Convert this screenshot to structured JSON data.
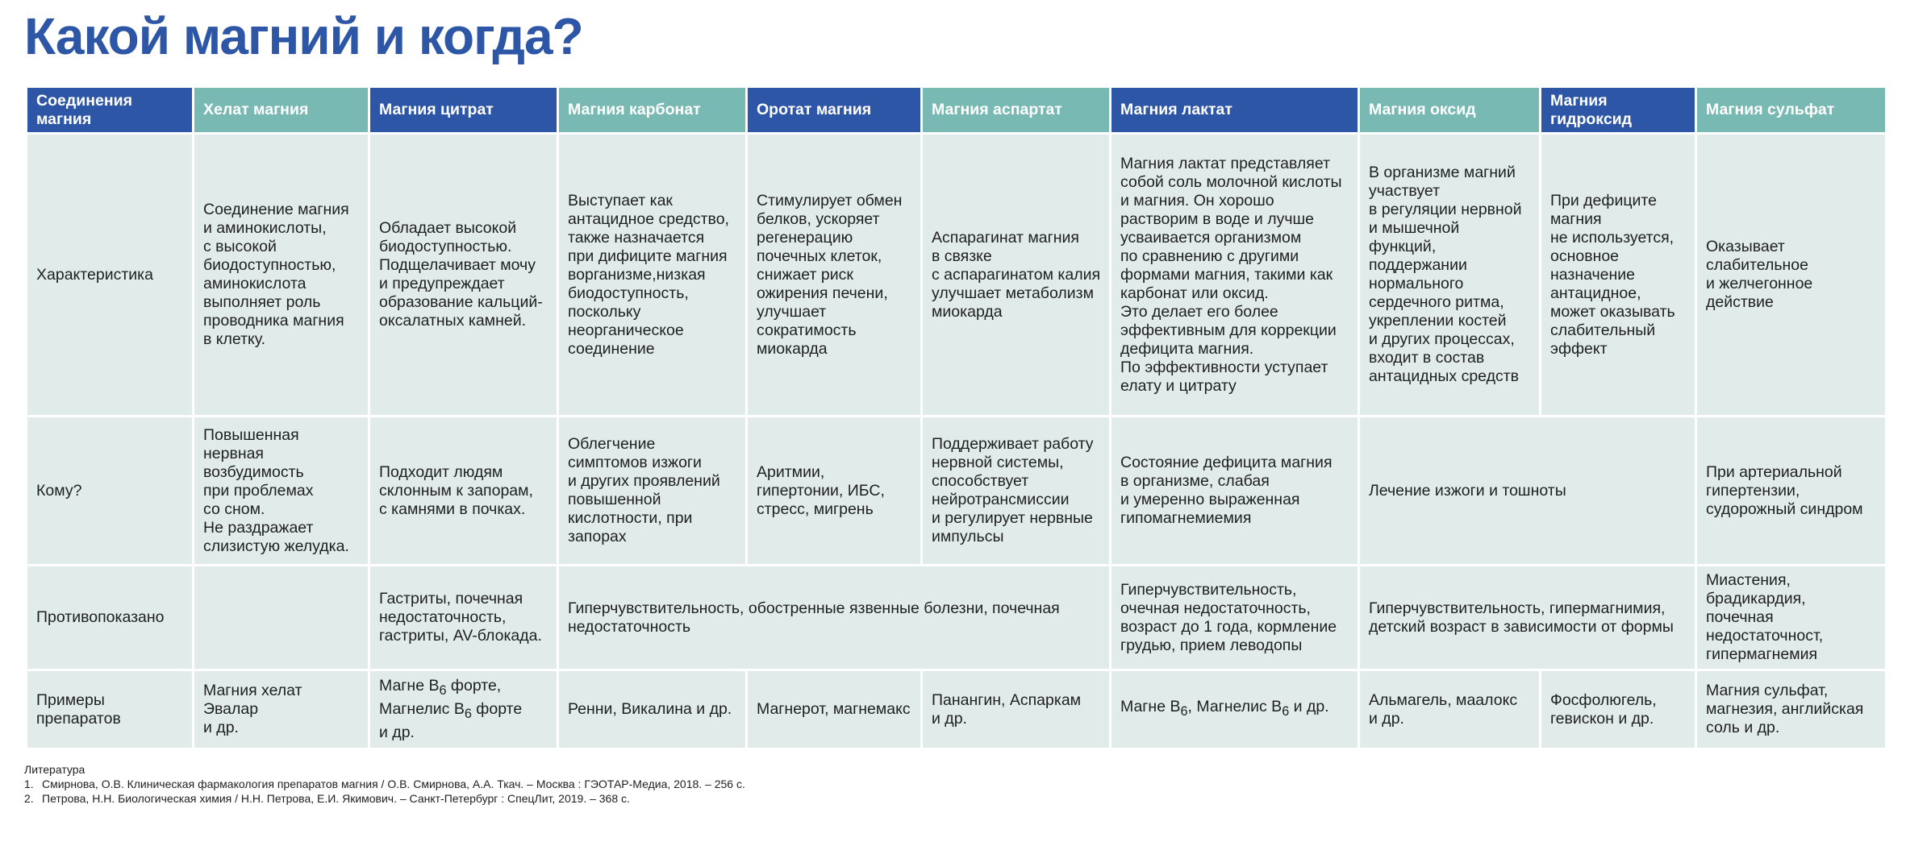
{
  "title": "Какой магний и когда?",
  "table": {
    "headers": [
      "Соединения магния",
      "Хелат магния",
      "Магния цитрат",
      "Магния карбонат",
      "Оротат магния",
      "Магния аспартат",
      "Магния лактат",
      "Магния оксид",
      "Магния гидроксид",
      "Магния сульфат"
    ],
    "rows": {
      "characteristic": {
        "label": "Характеристика",
        "chelate": "Соединение магния\nи аминокислоты,\nс высокой\nбиодоступностью,\nаминокислота\nвыполняет роль\nпроводника магния\nв клетку.",
        "citrate": "Обладает высокой\nбиодоступностью.\nПодщелачивает мочу\nи предупреждает\nобразование кальций-\nоксалатных камней.",
        "carbonate": "Выступает как\nантацидное средство,\n также назначается\n при дифиците магния\nворганизме,низкая\nбиодоступность,\nпоскольку\nнеорганическое\nсоединение",
        "orotate": "Стимулирует обмен\nбелков, ускоряет\nрегенерацию\nпочечных клеток,\nснижает риск\nожирения печени,\nулучшает\nсократимость\nмиокарда",
        "aspartate": "Аспарагинат магния\nв связке\nс аспарагинатом калия\nулучшает метаболизм\nмиокарда",
        "lactate": "Магния лактат представляет\nсобой соль молочной кислоты\nи магния. Он хорошо\nрастворим в воде и лучше\nусваивается организмом\nпо сравнению с другими\nформами магния, такими как\nкарбонат или оксид.\nЭто делает его более\nэффективным для коррекции\nдефицита магния.\nПо эффективности уступает\nелату и цитрату",
        "oxide": "В организме магний\nучаствует\nв регуляции нервной\nи мышечной\nфункций,\nподдержании\nнормального\nсердечного ритма,\nукреплении костей\nи других процессах,\nвходит в состав\nантацидных средств",
        "hydroxide": "При дефиците\nмагния\nне используется,\nосновное\nназначение\nантацидное,\nможет оказывать\nслабительный\nэффект",
        "sulfate": "Оказывает\nслабительное\nи желчегонное\nдействие"
      },
      "whom": {
        "label": "Кому?",
        "chelate": "Повышенная\nнервная\nвозбудимость\nпри проблемах\nсо сном.\nНе раздражает\nслизистую желудка.",
        "citrate": "Подходит людям\nсклонным к запорам,\nс камнями в почках.",
        "carbonate": "Облегчение\nсимптомов изжоги\nи других проявлений\nповышенной\nкислотности, при\nзапорах",
        "orotate": "Аритмии,\nгипертонии, ИБС,\nстресс, мигрень",
        "aspartate": "Поддерживает работу\nнервной системы,\nспособствует\nнейротрансмиссии\nи регулирует нервные\nимпульсы",
        "lactate": "Состояние дефицита магния\nв организме, слабая\nи умеренно выраженная\nгипомагнемиемия",
        "oxide_hydroxide": "Лечение изжоги и тошноты",
        "sulfate": "При артериальной\nгипертензии,\nсудорожный синдром"
      },
      "contra": {
        "label": "Противопоказано",
        "chelate": "",
        "citrate": "Гастриты, почечная\nнедостаточность,\nгастриты, AV-блокада.",
        "carbonate_to_aspartate": "Гиперчувствительность, обостренные язвенные болезни, почечная\nнедостаточность",
        "lactate": "Гиперчувствительность,\nочечная недостаточность,\nвозраст до 1 года, кормление\nгрудью, прием леводопы",
        "oxide_hydroxide": "Гиперчувствительность, гипермагнимия,\nдетский возраст в зависимости от формы",
        "sulfate": "Миастения,\nбрадикардия,\nпочечная\nнедостаточност,\nгипермагнемия"
      },
      "examples": {
        "label": "Примеры\nпрепаратов",
        "chelate": "Магния хелат Эвалар\nи др.",
        "citrate_1": "Магне B",
        "citrate_sub1": "6",
        "citrate_2": " форте,\nМагнелис B",
        "citrate_sub2": "6",
        "citrate_3": " форте\nи др.",
        "carbonate": "Ренни, Викалина и др.",
        "orotate": "Магнерот, магнемакс",
        "aspartate": "Панангин, Аспаркам\nи др.",
        "lactate_1": "Магне B",
        "lactate_sub1": "6",
        "lactate_2": ", Магнелис B",
        "lactate_sub2": "6",
        "lactate_3": " и др.",
        "oxide": "Альмагель, маалокс\nи др.",
        "hydroxide": "Фосфолюгель,\nгевискон и др.",
        "sulfate": "Магния сульфат,\nмагнезия, английская\nсоль и др."
      }
    }
  },
  "literature": {
    "heading": "Литература",
    "items": [
      {
        "num": "1.",
        "text": "Смирнова, О.В. Клиническая фармакология препаратов магния / О.В. Смирнова, А.А. Ткач. – Москва : ГЭОТАР-Медиа, 2018. – 256 с."
      },
      {
        "num": "2.",
        "text": "Петрова, Н.Н. Биологическая химия / Н.Н. Петрова, Е.И. Якимович. – Санкт-Петербург : СпецЛит, 2019. – 368 с."
      }
    ]
  },
  "colors": {
    "title": "#2d56a6",
    "header_dark": "#2e56a6",
    "header_teal": "#79b9b4",
    "cell_bg": "#e1ecea"
  }
}
